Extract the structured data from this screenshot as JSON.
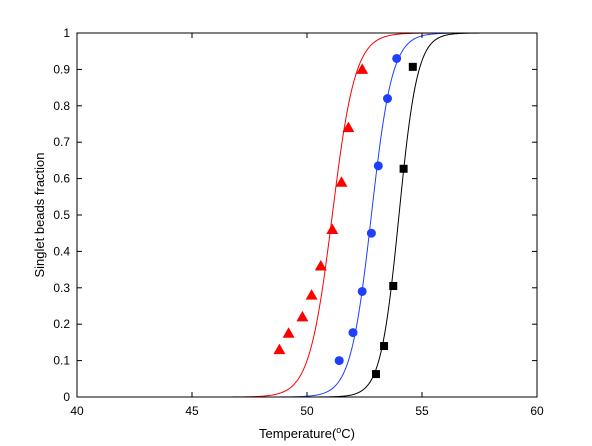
{
  "chart_data": {
    "type": "scatter",
    "title": "",
    "xlabel": "Temperature(",
    "xlabel_sup": "o",
    "xlabel_suffix": "C)",
    "ylabel": "Singlet beads fraction",
    "xlim": [
      40,
      60
    ],
    "ylim": [
      0,
      1
    ],
    "xticks": [
      40,
      45,
      50,
      55,
      60
    ],
    "yticks": [
      0,
      0.1,
      0.2,
      0.3,
      0.4,
      0.5,
      0.6,
      0.7,
      0.8,
      0.9,
      1
    ],
    "grid": false,
    "legend": "none",
    "series": [
      {
        "marker": "triangle",
        "color": "#ff0000",
        "x": [
          48.8,
          49.2,
          49.8,
          50.2,
          50.6,
          51.1,
          51.5,
          51.8,
          52.4
        ],
        "y": [
          0.13,
          0.175,
          0.22,
          0.28,
          0.36,
          0.46,
          0.59,
          0.74,
          0.9
        ],
        "curve": {
          "midpoint": 51.1,
          "slope": 2.0
        }
      },
      {
        "marker": "circle",
        "color": "#1f3fff",
        "x": [
          51.4,
          52.0,
          52.4,
          52.8,
          53.1,
          53.5,
          53.9
        ],
        "y": [
          0.1,
          0.177,
          0.29,
          0.45,
          0.635,
          0.82,
          0.93
        ],
        "curve": {
          "midpoint": 52.8,
          "slope": 2.2
        }
      },
      {
        "marker": "square",
        "color": "#000000",
        "x": [
          53.0,
          53.35,
          53.75,
          54.2,
          54.6
        ],
        "y": [
          0.063,
          0.14,
          0.305,
          0.627,
          0.907
        ],
        "curve": {
          "midpoint": 54.0,
          "slope": 2.5
        }
      }
    ]
  }
}
